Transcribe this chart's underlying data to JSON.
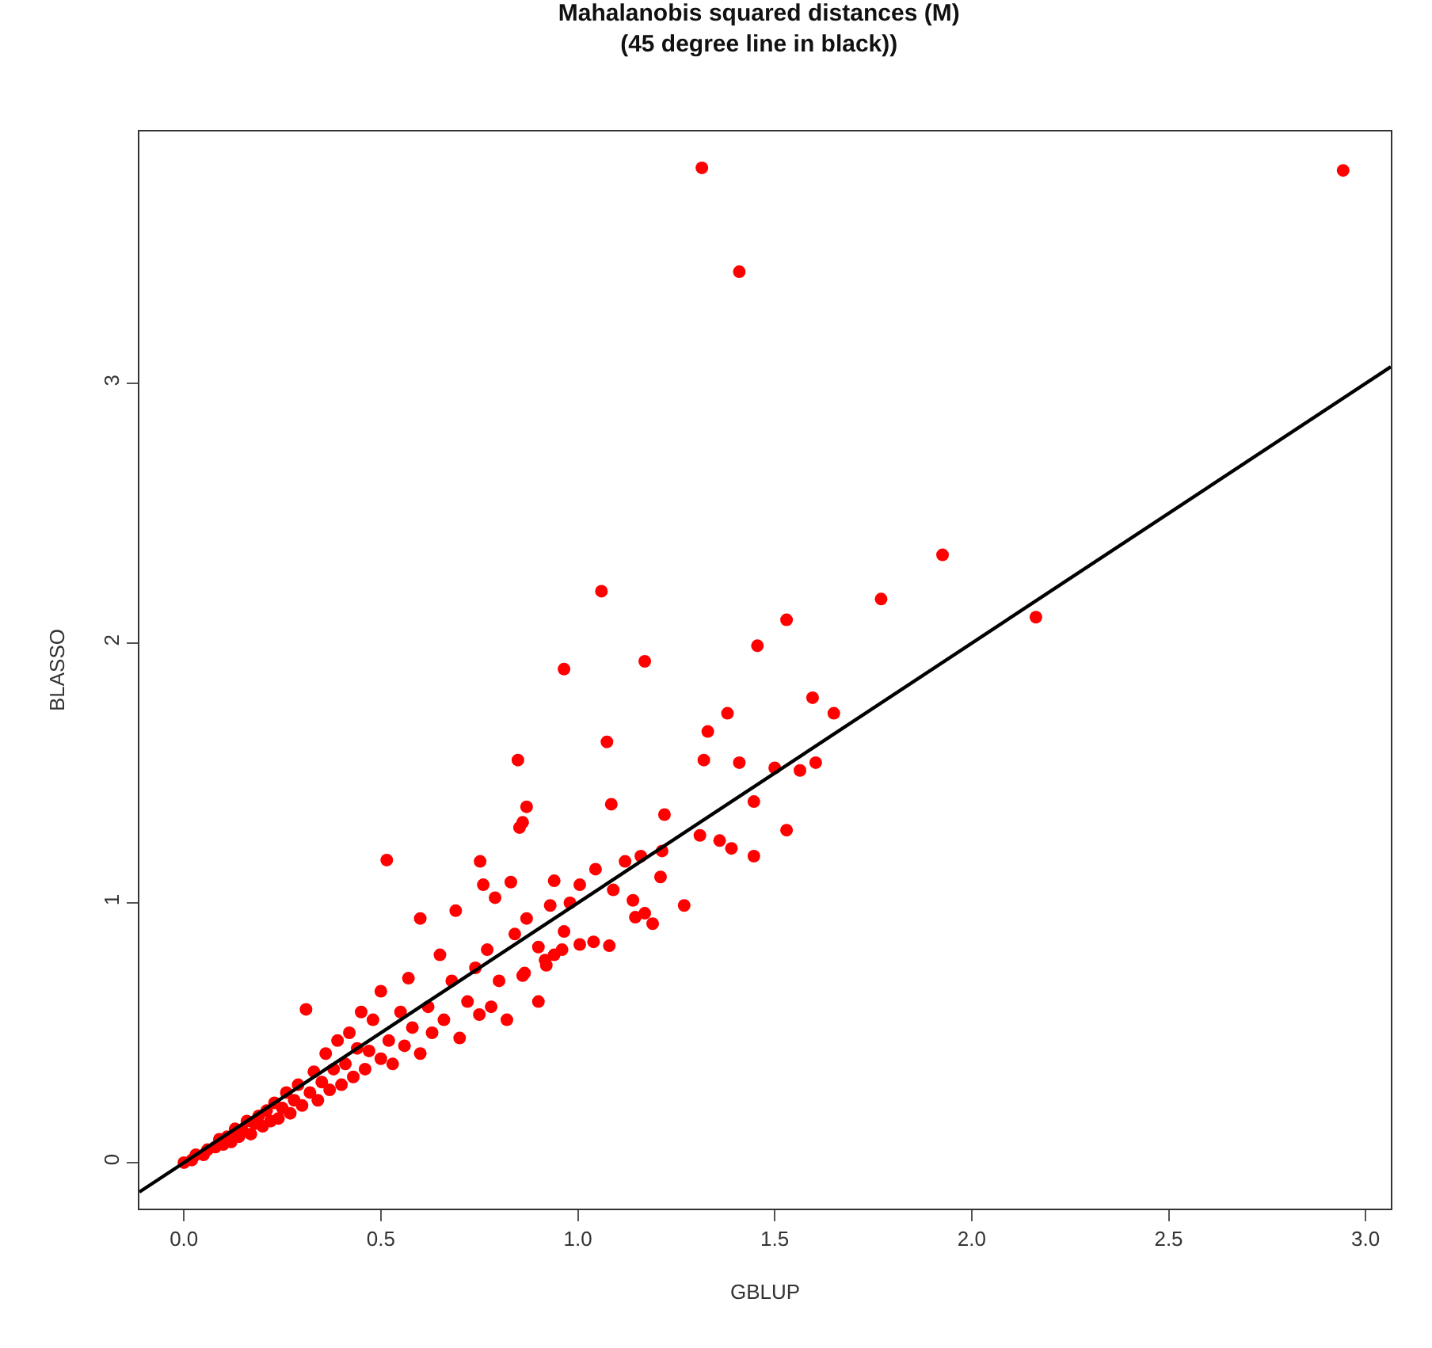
{
  "chart_data": {
    "type": "scatter",
    "title": "Mahalanobis squared distances (M)\n(45 degree line in black))",
    "xlabel": "GBLUP",
    "ylabel": "BLASSO",
    "xlim": [
      -0.113,
      3.064
    ],
    "ylim": [
      -0.177,
      3.97
    ],
    "xticks": [
      {
        "value": 0,
        "label": "0.0"
      },
      {
        "value": 0.5,
        "label": "0.5"
      },
      {
        "value": 1,
        "label": "1.0"
      },
      {
        "value": 1.5,
        "label": "1.5"
      },
      {
        "value": 2,
        "label": "2.0"
      },
      {
        "value": 2.5,
        "label": "2.5"
      },
      {
        "value": 3,
        "label": "3.0"
      }
    ],
    "yticks": [
      0,
      1,
      2,
      3
    ],
    "series": [
      {
        "marker": "circle",
        "color": "#ff0000",
        "x": [
          0.0,
          0.02,
          0.03,
          0.05,
          0.06,
          0.08,
          0.09,
          0.1,
          0.11,
          0.12,
          0.13,
          0.14,
          0.15,
          0.16,
          0.17,
          0.18,
          0.19,
          0.2,
          0.21,
          0.22,
          0.23,
          0.24,
          0.25,
          0.26,
          0.27,
          0.28,
          0.29,
          0.3,
          0.31,
          0.32,
          0.33,
          0.34,
          0.35,
          0.36,
          0.37,
          0.38,
          0.39,
          0.4,
          0.41,
          0.42,
          0.43,
          0.44,
          0.45,
          0.46,
          0.47,
          0.48,
          0.5,
          0.5,
          0.52,
          0.53,
          0.55,
          0.56,
          0.57,
          0.58,
          0.6,
          0.6,
          0.62,
          0.63,
          0.65,
          0.66,
          0.68,
          0.69,
          0.7,
          0.72,
          0.74,
          0.75,
          0.77,
          0.78,
          0.8,
          0.82,
          0.84,
          0.86,
          0.9,
          0.92,
          0.96,
          0.98,
          1.315,
          2.943,
          1.41,
          1.06,
          0.965,
          1.17,
          1.77,
          1.926,
          1.53,
          2.163,
          1.456,
          1.38,
          1.33,
          1.596,
          1.65,
          1.074,
          0.848,
          1.32,
          1.41,
          1.5,
          1.564,
          1.604,
          1.085,
          0.87,
          0.86,
          0.852,
          1.22,
          1.447,
          1.53,
          1.31,
          1.36,
          1.39,
          1.447,
          0.515,
          0.752,
          1.214,
          1.16,
          1.12,
          1.045,
          1.09,
          1.21,
          1.27,
          1.14,
          1.005,
          0.94,
          0.93,
          0.83,
          0.79,
          0.76,
          0.87,
          1.146,
          1.17,
          1.19,
          1.04,
          1.08,
          1.005,
          0.965,
          0.94,
          0.917,
          0.9,
          0.865
        ],
        "values": [
          0.0,
          0.01,
          0.03,
          0.03,
          0.05,
          0.06,
          0.09,
          0.07,
          0.1,
          0.08,
          0.13,
          0.1,
          0.12,
          0.16,
          0.11,
          0.15,
          0.18,
          0.14,
          0.2,
          0.16,
          0.23,
          0.17,
          0.21,
          0.27,
          0.19,
          0.24,
          0.3,
          0.22,
          0.59,
          0.27,
          0.35,
          0.24,
          0.31,
          0.42,
          0.28,
          0.36,
          0.47,
          0.3,
          0.38,
          0.5,
          0.33,
          0.44,
          0.58,
          0.36,
          0.43,
          0.55,
          0.4,
          0.66,
          0.47,
          0.38,
          0.58,
          0.45,
          0.71,
          0.52,
          0.42,
          0.94,
          0.6,
          0.5,
          0.8,
          0.55,
          0.7,
          0.97,
          0.48,
          0.62,
          0.75,
          0.57,
          0.82,
          0.6,
          0.7,
          0.55,
          0.88,
          0.72,
          0.62,
          0.76,
          0.82,
          1.0,
          3.83,
          3.82,
          3.43,
          2.2,
          1.9,
          1.93,
          2.17,
          2.34,
          2.09,
          2.1,
          1.99,
          1.73,
          1.66,
          1.79,
          1.73,
          1.62,
          1.55,
          1.55,
          1.54,
          1.52,
          1.51,
          1.54,
          1.38,
          1.37,
          1.31,
          1.29,
          1.34,
          1.39,
          1.28,
          1.26,
          1.24,
          1.21,
          1.18,
          1.165,
          1.16,
          1.2,
          1.18,
          1.16,
          1.13,
          1.05,
          1.1,
          0.99,
          1.01,
          1.07,
          1.085,
          0.99,
          1.08,
          1.02,
          1.07,
          0.94,
          0.945,
          0.96,
          0.92,
          0.85,
          0.835,
          0.84,
          0.89,
          0.8,
          0.78,
          0.83,
          0.73
        ]
      },
      {
        "type": "line",
        "color": "#000000",
        "x": [
          -0.113,
          3.064
        ],
        "values": [
          -0.113,
          3.064
        ],
        "line_style": "solid",
        "marker": "none"
      }
    ]
  }
}
